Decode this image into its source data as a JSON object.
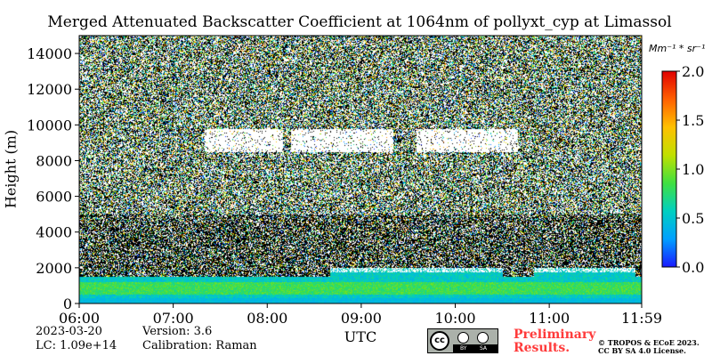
{
  "chart_data": {
    "type": "heatmap",
    "title": "Merged Attenuated Backscatter Coefficient at 1064nm of pollyxt_cyp at Limassol",
    "xlabel": "UTC",
    "ylabel": "Height (m)",
    "x_ticks": [
      "06:00",
      "07:00",
      "08:00",
      "09:00",
      "10:00",
      "11:00",
      "11:59"
    ],
    "x_range_hours": [
      6.0,
      11.9833
    ],
    "y_ticks": [
      0,
      2000,
      4000,
      6000,
      8000,
      10000,
      12000,
      14000
    ],
    "y_range_m": [
      0,
      15000
    ],
    "colorbar": {
      "unit": "Mm⁻¹ * sr⁻¹",
      "ticks": [
        "0.0",
        "0.5",
        "1.0",
        "1.5",
        "2.0"
      ],
      "range": [
        0.0,
        2.0
      ],
      "colormap": [
        "#1a1aff",
        "#00a0ff",
        "#00d0c0",
        "#40e040",
        "#c0e000",
        "#ffc000",
        "#ff6000",
        "#e00000"
      ]
    },
    "features": {
      "cloud_layer_m": [
        8500,
        9800
      ],
      "cloud_spans_utc": [
        [
          "07:20",
          "08:10"
        ],
        [
          "08:15",
          "08:40"
        ],
        [
          "08:40",
          "09:20"
        ],
        [
          "09:35",
          "10:20"
        ],
        [
          "10:20",
          "10:40"
        ]
      ],
      "boundary_layer_top_m": 2000,
      "boundary_layer_spans_utc": [
        [
          "08:40",
          "10:30"
        ],
        [
          "10:50",
          "11:55"
        ]
      ],
      "peak_layer_m": [
        500,
        1200
      ]
    }
  },
  "footer": {
    "date": "2023-03-20",
    "lc": "LC: 1.09e+14",
    "version": "Version: 3.6",
    "calibration": "Calibration: Raman",
    "preliminary_line1": "Preliminary",
    "preliminary_line2": "Results.",
    "copyright_line1": "© TROPOS & ECoE 2023.",
    "copyright_line2": "CC BY SA 4.0 License.",
    "cc_label": "cc",
    "by_label": "BY",
    "sa_label": "SA"
  }
}
